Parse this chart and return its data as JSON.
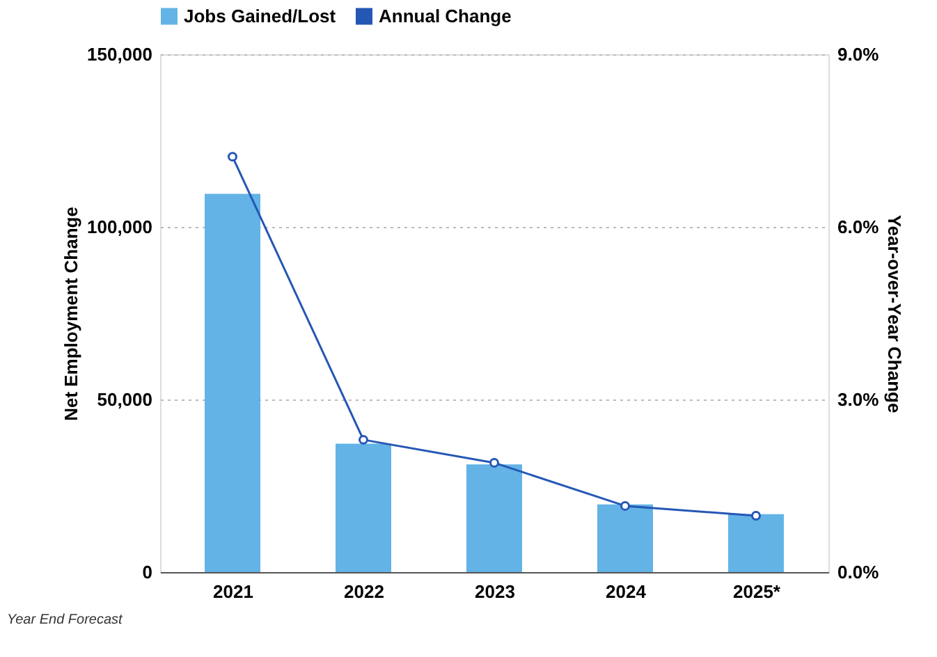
{
  "chart_data": {
    "type": "bar",
    "categories": [
      "2021",
      "2022",
      "2023",
      "2024",
      "2025*"
    ],
    "series": [
      {
        "name": "Jobs Gained/Lost",
        "color": "#63b3e6",
        "values": [
          109600,
          37200,
          31200,
          19600,
          16800
        ]
      },
      {
        "name": "Annual Change",
        "type": "line",
        "axis": "y2",
        "color": "#2557b5",
        "values": [
          7.22,
          2.3,
          1.9,
          1.15,
          0.98
        ]
      }
    ],
    "ylabel": "Net Employment Change",
    "y2label": "Year-over-Year Change",
    "ylim": [
      0,
      150000
    ],
    "yticks": [
      {
        "value": 0,
        "label": "0"
      },
      {
        "value": 50000,
        "label": "50,000"
      },
      {
        "value": 100000,
        "label": "100,000"
      },
      {
        "value": 150000,
        "label": "150,000"
      }
    ],
    "y2lim": [
      0,
      9
    ],
    "y2ticks": [
      {
        "value": 0,
        "label": "0.0%"
      },
      {
        "value": 3,
        "label": "3.0%"
      },
      {
        "value": 6,
        "label": "6.0%"
      },
      {
        "value": 9,
        "label": "9.0%"
      }
    ],
    "grid": "y",
    "legend": "top",
    "marker": "circle",
    "annotations": [
      "Year End Forecast"
    ]
  }
}
